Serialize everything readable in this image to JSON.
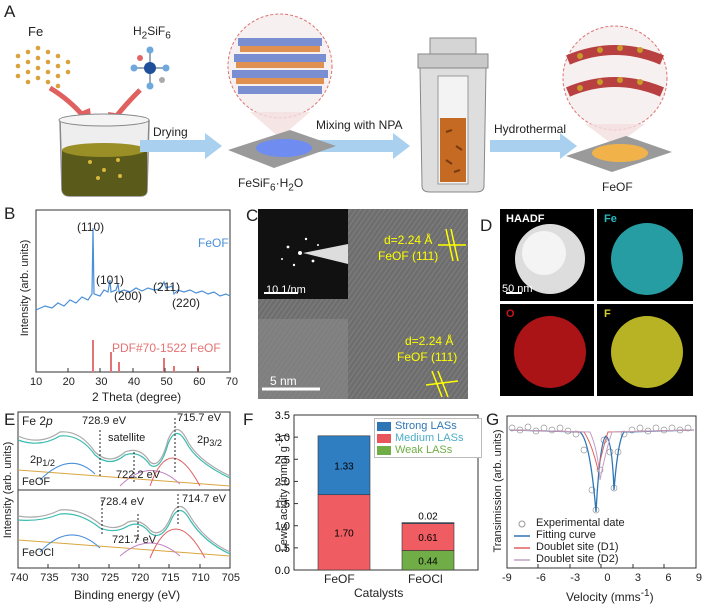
{
  "panelA": {
    "label": "A",
    "fe": "Fe",
    "acid_main": "H",
    "acid_sub1": "2",
    "acid_mid": "SiF",
    "acid_sub2": "6",
    "step1": "Drying",
    "step2": "Mixing with NPA",
    "step3": "Hydrothermal",
    "inter_name": "FeSiF",
    "inter_sub": "6",
    "inter_tail": "·H",
    "inter_sub2": "2",
    "inter_end": "O",
    "product": "FeOF"
  },
  "panelB": {
    "label": "B",
    "legend": "FeOF",
    "ref_label": "PDF#70-1522 FeOF",
    "xlabel": "2 Theta (degree)",
    "ylabel": "Intensity (arb. units)",
    "xticks": [
      "10",
      "20",
      "30",
      "40",
      "50",
      "60",
      "70"
    ],
    "peaks": [
      "(110)",
      "(101)",
      "(200)",
      "(211)",
      "(220)"
    ]
  },
  "panelC": {
    "label": "C",
    "scale1": "10 1/nm",
    "scale2": "5 nm",
    "d1a": "d=2.24 Å",
    "d1b": "FeOF (111)",
    "d2a": "d=2.24 Å",
    "d2b": "FeOF (111)"
  },
  "panelD": {
    "label": "D",
    "haadf": "HAADF",
    "fe": "Fe",
    "o": "O",
    "f": "F",
    "scale": "50 nm",
    "colors": {
      "fe": "#2bb8c0",
      "o": "#c8171b",
      "f": "#d7d22b"
    }
  },
  "panelE": {
    "label": "E",
    "title_a": "Fe 2",
    "title_b": "p",
    "top_name": "FeOF",
    "bot_name": "FeOCl",
    "top_peaks": [
      "728.9 eV",
      "715.7 eV",
      "722.2 eV"
    ],
    "satellite": "satellite",
    "p12": "2p",
    "p12_sub": "1/2",
    "p32": "2p",
    "p32_sub": "3/2",
    "bot_peaks": [
      "728.4 eV",
      "714.7 eV",
      "721.7 eV"
    ],
    "xlabel": "Binding energy (eV)",
    "ylabel": "Intensity (arb. units)",
    "xticks": [
      "740",
      "735",
      "730",
      "725",
      "720",
      "715",
      "710",
      "705"
    ]
  },
  "panelF": {
    "label": "F",
    "ylabel": "Lewis acidity (mmol g",
    "ylabel_sup": "-1",
    "ylabel_end": ")",
    "xlabel": "Catalysts",
    "yticks": [
      "0.0",
      "0.5",
      "1.0",
      "1.5",
      "2.0",
      "2.5",
      "3.0",
      "3.5"
    ],
    "legend": [
      "Strong LASs",
      "Medium LASs",
      "Weak LASs"
    ],
    "legend_colors": [
      "#2e75b6",
      "#e8555c",
      "#70ad47"
    ],
    "legend_text_colors": [
      "#2e75b6",
      "#4bacc6",
      "#70ad47"
    ]
  },
  "chart_data": {
    "type": "bar",
    "categories": [
      "FeOF",
      "FeOCl"
    ],
    "series": [
      {
        "name": "Weak LASs",
        "values": [
          0.0,
          0.44
        ],
        "color": "#70ad47",
        "labels": [
          "",
          "0.44"
        ]
      },
      {
        "name": "Medium LASs",
        "values": [
          1.7,
          0.61
        ],
        "color": "#ef5d63",
        "labels": [
          "1.70",
          "0.61"
        ]
      },
      {
        "name": "Strong LASs",
        "values": [
          1.33,
          0.02
        ],
        "color": "#2f7ec1",
        "labels": [
          "1.33",
          "0.02"
        ]
      }
    ],
    "xlabel": "Catalysts",
    "ylabel": "Lewis acidity (mmol g-1)",
    "ylim": [
      0,
      3.5
    ],
    "stacked": true
  },
  "panelG": {
    "label": "G",
    "xlabel": "Velocity (mms",
    "xlabel_sup": "-1",
    "xlabel_end": ")",
    "ylabel": "Transimission (arb. units)",
    "xticks": [
      "-9",
      "-6",
      "-3",
      "0",
      "3",
      "6",
      "9"
    ],
    "legend": [
      "Experimental date",
      "Fitting curve",
      "Doublet site (D1)",
      "Doublet site (D2)"
    ]
  }
}
